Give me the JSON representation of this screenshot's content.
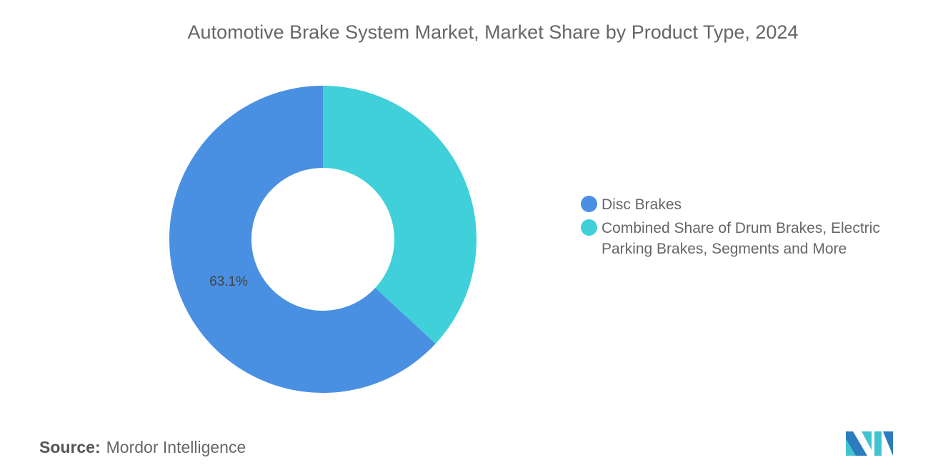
{
  "chart_data": {
    "type": "pie",
    "variant": "donut",
    "title": "Automotive Brake System Market, Market Share by Product Type, 2024",
    "categories": [
      "Disc Brakes",
      "Combined Share of Drum Brakes, Electric Parking Brakes, Segments and More"
    ],
    "values": [
      63.1,
      36.9
    ],
    "unit": "%",
    "data_labels": [
      "63.1%",
      ""
    ],
    "colors": [
      "#4a90e2",
      "#40d0da"
    ],
    "legend_position": "right"
  },
  "source": {
    "label": "Source:",
    "value": "Mordor Intelligence"
  },
  "logo": {
    "text": "Mordor Intelligence",
    "colors": [
      "#2b7bbf",
      "#40c4cf"
    ]
  }
}
